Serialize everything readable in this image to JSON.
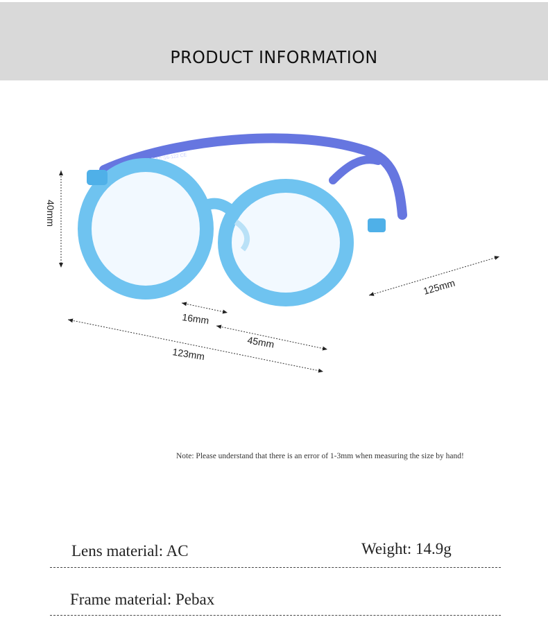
{
  "header": {
    "title": "PRODUCT INFORMATION"
  },
  "product": {
    "arm_print": "S609 P 47□16-122 CE",
    "frame_color": "#6fc3f0",
    "temple_color": "#6676e0",
    "dimensions": {
      "height": "40mm",
      "temple": "125mm",
      "bridge": "16mm",
      "lens": "45mm",
      "total_width": "123mm"
    }
  },
  "note": "Note: Please understand that there is an error of 1-3mm when measuring the size by hand!",
  "specs": {
    "lens_material": "Lens material: AC",
    "weight": "Weight: 14.9g",
    "frame_material": "Frame material: Pebax"
  }
}
